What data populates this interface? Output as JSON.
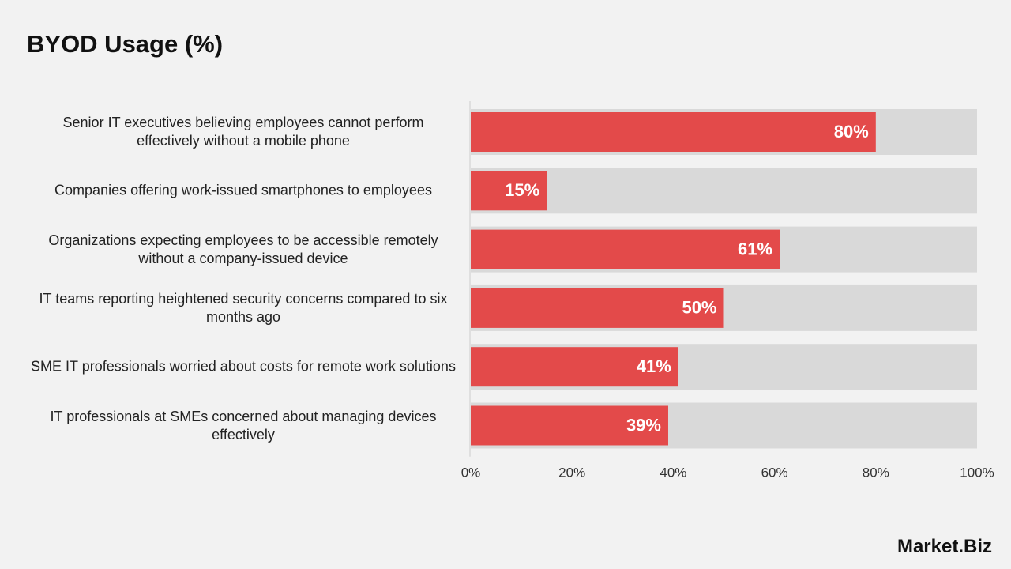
{
  "chart_data": {
    "type": "barh",
    "title": "BYOD Usage (%)",
    "categories": [
      "Senior IT executives believing employees cannot perform effectively without a mobile phone",
      "Companies offering work-issued smartphones to employees",
      "Organizations expecting employees to be accessible remotely without a company-issued device",
      "IT teams reporting heightened security concerns compared to six months ago",
      "SME IT professionals worried about costs for remote work solutions",
      "IT professionals at SMEs concerned about managing devices effectively"
    ],
    "values": [
      80,
      15,
      61,
      50,
      41,
      39
    ],
    "value_labels": [
      "80%",
      "15%",
      "61%",
      "50%",
      "41%",
      "39%"
    ],
    "color": "#e34a4a",
    "track_color": "#d9d9d9",
    "xlim": [
      0,
      100
    ],
    "xticks": [
      {
        "value": 0,
        "label": "0%"
      },
      {
        "value": 20,
        "label": "20%"
      },
      {
        "value": 40,
        "label": "40%"
      },
      {
        "value": 60,
        "label": "60%"
      },
      {
        "value": 80,
        "label": "80%"
      },
      {
        "value": 100,
        "label": "100%"
      }
    ]
  },
  "logo": "Market.Biz"
}
